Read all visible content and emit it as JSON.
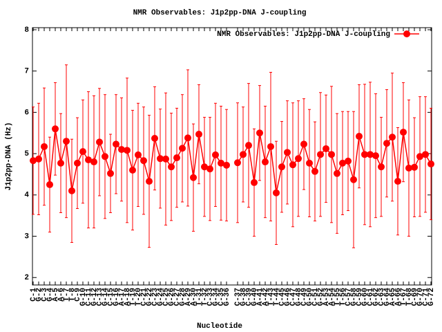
{
  "chart_data": {
    "type": "line",
    "title": "NMR Observables: J1p2pp-DNA J-coupling",
    "xlabel": "Nucleotide",
    "ylabel": "J1p2pp-DNA (Hz)",
    "categories": [
      "C-1",
      "G-2",
      "C-3",
      "G-4",
      "A-5",
      "A-6",
      "T-7",
      "T-8",
      "C-9",
      "G-10",
      "C-11",
      "G-12",
      "C-13",
      "G-14",
      "C-15",
      "G-16",
      "A-17",
      "A-18",
      "T-19",
      "T-20",
      "C-21",
      "G-22",
      "C-23",
      "G-24",
      "C-25",
      "G-26",
      "C-27",
      "G-28",
      "A-29",
      "A-30",
      "T-31",
      "T-32",
      "C-33",
      "G-34",
      "C-35",
      "G-36",
      null,
      "C-37",
      "G-38",
      "C-39",
      "G-40",
      "A-41",
      "A-42",
      "T-43",
      "T-44",
      "C-45",
      "G-46",
      "C-47",
      "G-48",
      "C-49",
      "G-50",
      "C-51",
      "G-52",
      "A-53",
      "A-54",
      "T-55",
      "T-56",
      "C-57",
      "G-58",
      "C-59",
      "G-60",
      "C-61",
      "G-62",
      "C-63",
      "G-64",
      "A-65",
      "A-66",
      "T-67",
      "T-68",
      "C-69",
      "G-70",
      "C-71",
      "G-72"
    ],
    "series": [
      {
        "name": "NMR Observables: J1p2pp-DNA J-coupling",
        "color": "#ff0000",
        "values": [
          4.83,
          4.87,
          5.17,
          4.25,
          5.6,
          4.77,
          5.3,
          4.1,
          4.77,
          5.05,
          4.85,
          4.8,
          5.28,
          4.93,
          4.52,
          5.23,
          5.1,
          5.08,
          4.6,
          4.97,
          4.83,
          4.33,
          5.37,
          4.88,
          4.87,
          4.68,
          4.9,
          5.13,
          5.38,
          4.42,
          5.47,
          4.68,
          4.63,
          4.97,
          4.77,
          4.72,
          null,
          4.78,
          4.98,
          5.2,
          4.3,
          5.5,
          4.8,
          5.17,
          4.05,
          4.68,
          5.03,
          4.73,
          4.88,
          5.23,
          4.77,
          4.57,
          4.98,
          5.12,
          4.98,
          4.52,
          4.77,
          4.82,
          4.37,
          5.42,
          4.98,
          4.98,
          4.95,
          4.68,
          5.25,
          5.4,
          4.33,
          5.52,
          4.65,
          4.67,
          4.93,
          4.98,
          4.75
        ],
        "errors": [
          1.3,
          1.35,
          1.42,
          1.15,
          1.12,
          1.2,
          1.85,
          1.25,
          1.1,
          1.25,
          1.65,
          1.6,
          1.3,
          1.5,
          0.95,
          1.2,
          1.25,
          1.75,
          1.45,
          1.25,
          1.3,
          1.6,
          1.25,
          1.2,
          1.6,
          1.3,
          1.2,
          1.3,
          1.65,
          1.3,
          1.2,
          1.2,
          1.25,
          1.25,
          1.38,
          1.35,
          null,
          1.45,
          1.15,
          1.5,
          1.3,
          1.15,
          1.35,
          1.8,
          1.25,
          1.1,
          1.25,
          1.5,
          1.4,
          1.1,
          1.3,
          1.2,
          1.5,
          1.3,
          1.65,
          1.45,
          1.25,
          1.2,
          1.65,
          1.25,
          1.7,
          1.75,
          1.5,
          1.2,
          1.3,
          1.55,
          1.3,
          1.2,
          1.65,
          1.2,
          1.45,
          1.4,
          1.35
        ]
      }
    ],
    "ylim": [
      1.82,
      8.05
    ],
    "yticks": [
      2,
      3,
      4,
      5,
      6,
      7,
      8
    ],
    "legend": "top right"
  }
}
